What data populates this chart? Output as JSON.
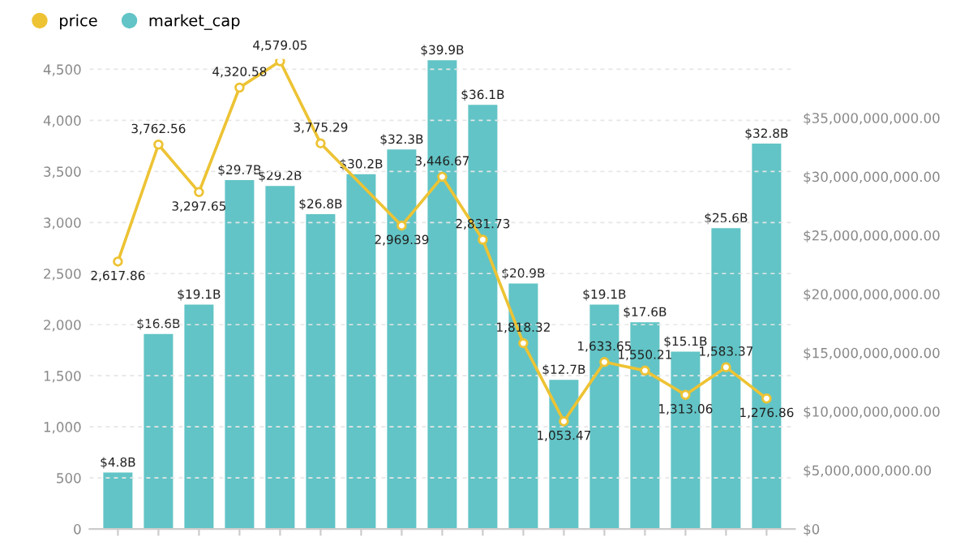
{
  "chart_data": {
    "type": "bar",
    "categories": [
      null,
      null,
      null,
      null,
      null,
      null,
      null,
      null,
      null,
      null,
      null,
      null,
      null,
      null,
      null,
      null,
      null
    ],
    "series": [
      {
        "name": "market_cap",
        "axis": "y2",
        "color": "#62c4c6",
        "values": [
          4800000000.0,
          16600000000.0,
          19100000000.0,
          29700000000.0,
          29200000000.0,
          26800000000.0,
          30200000000.0,
          32300000000.0,
          39900000000.0,
          36100000000.0,
          20900000000.0,
          12700000000.0,
          19100000000.0,
          17600000000.0,
          15100000000.0,
          25600000000.0,
          32800000000.0
        ],
        "value_labels": [
          "$4.8B",
          "$16.6B",
          "$19.1B",
          "$29.7B",
          "$29.2B",
          "$26.8B",
          "$30.2B",
          "$32.3B",
          "$39.9B",
          "$36.1B",
          "$20.9B",
          "$12.7B",
          "$19.1B",
          "$17.6B",
          "$15.1B",
          "$25.6B",
          "$32.8B"
        ]
      },
      {
        "name": "price",
        "type": "line",
        "axis": "y",
        "color": "#edc334",
        "values": [
          2617.86,
          3762.56,
          3297.65,
          4320.58,
          4579.05,
          3775.29,
          null,
          2969.39,
          3446.67,
          2831.73,
          1818.32,
          1053.47,
          1633.65,
          1550.21,
          1313.06,
          1583.37,
          1276.86
        ],
        "value_labels": [
          "2,617.86",
          "3,762.56",
          "3,297.65",
          "4,320.58",
          "4,579.05",
          "3,775.29",
          null,
          "2,969.39",
          "3,446.67",
          "2,831.73",
          "1,818.32",
          "1,053.47",
          "1,633.65",
          "1,550.21",
          "1,313.06",
          "1,583.37",
          "1,276.86"
        ]
      }
    ],
    "ylim": [
      0,
      4600
    ],
    "yticks": [
      0,
      500,
      {
        "value": 1000,
        "label": "1,000"
      },
      {
        "value": 1500,
        "label": "1,500"
      },
      {
        "value": 2000,
        "label": "2,000"
      },
      {
        "value": 2500,
        "label": "2,500"
      },
      {
        "value": 3000,
        "label": "3,000"
      },
      {
        "value": 3500,
        "label": "3,500"
      },
      {
        "value": 4000,
        "label": "4,000"
      },
      {
        "value": 4500,
        "label": "4,500"
      }
    ],
    "y2lim": [
      0,
      40000000000.0
    ],
    "y2ticks": [
      {
        "value": 0,
        "label": "$0"
      },
      {
        "value": 5000000000.0,
        "label": "$5,000,000,000.00"
      },
      {
        "value": 10000000000.0,
        "label": "$10,000,000,000.00"
      },
      {
        "value": 15000000000.0,
        "label": "$15,000,000,000.00"
      },
      {
        "value": 20000000000.0,
        "label": "$20,000,000,000.00"
      },
      {
        "value": 25000000000.0,
        "label": "$25,000,000,000.00"
      },
      {
        "value": 30000000000.0,
        "label": "$30,000,000,000.00"
      },
      {
        "value": 35000000000.0,
        "label": "$35,000,000,000.00"
      }
    ],
    "grid": "y",
    "legend": "top left",
    "marker": "circle",
    "line_style": "solid"
  }
}
